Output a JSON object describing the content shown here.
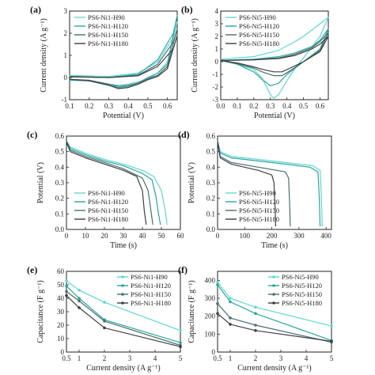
{
  "colors": {
    "H90": "#5fd8d0",
    "H120": "#2aa6a0",
    "H150": "#4b6f6d",
    "H180": "#3c3f44"
  },
  "chart_data": [
    {
      "id": "a",
      "label": "(a)",
      "type": "line",
      "xlabel": "Potential (V)",
      "ylabel": "Current density (A g⁻¹)",
      "xlim": [
        0.1,
        0.65
      ],
      "ylim": [
        -1,
        3
      ],
      "xticks": [
        "0.1",
        "0.2",
        "0.3",
        "0.4",
        "0.5",
        "0.6"
      ],
      "yticks": [
        "-1",
        "0",
        "1",
        "2",
        "3"
      ],
      "legend": [
        "PS6-Ni1-H90",
        "PS6-Ni1-H120",
        "PS6-Ni1-H150",
        "PS6-Ni1-H180"
      ],
      "series": [
        {
          "name": "PS6-Ni1-H90",
          "x": [
            0.1,
            0.3,
            0.45,
            0.55,
            0.63,
            0.65,
            0.6,
            0.55,
            0.5,
            0.45,
            0.4,
            0.35,
            0.3,
            0.2,
            0.1,
            0.1
          ],
          "y": [
            0.1,
            0.05,
            0.2,
            0.7,
            1.8,
            2.5,
            0.7,
            0.2,
            -0.05,
            -0.2,
            -0.3,
            -0.35,
            -0.3,
            -0.15,
            -0.1,
            0.1
          ]
        },
        {
          "name": "PS6-Ni1-H120",
          "x": [
            0.1,
            0.3,
            0.45,
            0.55,
            0.63,
            0.65,
            0.6,
            0.55,
            0.5,
            0.45,
            0.4,
            0.35,
            0.3,
            0.2,
            0.1,
            0.1
          ],
          "y": [
            0.05,
            0.0,
            0.15,
            0.8,
            2.0,
            2.8,
            0.6,
            0.2,
            0.0,
            -0.25,
            -0.4,
            -0.45,
            -0.35,
            -0.15,
            -0.12,
            0.05
          ]
        },
        {
          "name": "PS6-Ni1-H150",
          "x": [
            0.1,
            0.3,
            0.45,
            0.55,
            0.63,
            0.65,
            0.6,
            0.55,
            0.5,
            0.45,
            0.4,
            0.35,
            0.3,
            0.2,
            0.1,
            0.1
          ],
          "y": [
            0.05,
            0.0,
            0.1,
            0.6,
            1.6,
            2.2,
            0.5,
            0.1,
            -0.05,
            -0.25,
            -0.35,
            -0.4,
            -0.3,
            -0.12,
            -0.08,
            0.05
          ]
        },
        {
          "name": "PS6-Ni1-H180",
          "x": [
            0.1,
            0.3,
            0.45,
            0.55,
            0.63,
            0.65,
            0.6,
            0.55,
            0.5,
            0.45,
            0.4,
            0.35,
            0.3,
            0.2,
            0.1,
            0.1
          ],
          "y": [
            0.03,
            0.0,
            0.08,
            0.5,
            1.3,
            1.9,
            0.4,
            0.05,
            -0.1,
            -0.3,
            -0.45,
            -0.5,
            -0.35,
            -0.15,
            -0.08,
            0.03
          ]
        }
      ]
    },
    {
      "id": "b",
      "label": "(b)",
      "type": "line",
      "xlabel": "Potential (V)",
      "ylabel": "Current density (A g⁻¹)",
      "xlim": [
        0.0,
        0.65
      ],
      "ylim": [
        -3,
        4
      ],
      "xticks": [
        "0.0",
        "0.1",
        "0.2",
        "0.3",
        "0.4",
        "0.5",
        "0.6"
      ],
      "yticks": [
        "-3",
        "-2",
        "-1",
        "0",
        "1",
        "2",
        "3",
        "4"
      ],
      "legend": [
        "PS6-Ni5-H90",
        "PS6-Ni5-H120",
        "PS6-Ni5-H150",
        "PS6-Ni5-H180"
      ],
      "series": [
        {
          "name": "PS6-Ni5-H90",
          "x": [
            0.0,
            0.2,
            0.35,
            0.45,
            0.5,
            0.55,
            0.6,
            0.63,
            0.65,
            0.6,
            0.5,
            0.45,
            0.4,
            0.35,
            0.32,
            0.3,
            0.25,
            0.2,
            0.1,
            0.0
          ],
          "y": [
            0.2,
            0.4,
            0.9,
            1.6,
            2.0,
            2.5,
            3.0,
            3.3,
            3.5,
            2.0,
            0.3,
            -0.5,
            -1.5,
            -2.6,
            -2.9,
            -2.6,
            -1.3,
            -0.6,
            -0.2,
            0.2
          ]
        },
        {
          "name": "PS6-Ni5-H120",
          "x": [
            0.0,
            0.2,
            0.35,
            0.45,
            0.55,
            0.6,
            0.65,
            0.6,
            0.5,
            0.4,
            0.35,
            0.3,
            0.25,
            0.2,
            0.1,
            0.0
          ],
          "y": [
            0.1,
            0.2,
            0.4,
            0.7,
            1.2,
            1.7,
            2.6,
            1.0,
            0.0,
            -1.0,
            -1.7,
            -1.9,
            -1.4,
            -0.8,
            -0.2,
            0.1
          ]
        },
        {
          "name": "PS6-Ni5-H150",
          "x": [
            0.0,
            0.2,
            0.35,
            0.45,
            0.55,
            0.6,
            0.65,
            0.6,
            0.5,
            0.42,
            0.37,
            0.32,
            0.25,
            0.2,
            0.1,
            0.0
          ],
          "y": [
            0.1,
            0.15,
            0.3,
            0.6,
            1.1,
            1.6,
            2.3,
            0.9,
            0.0,
            -0.7,
            -1.1,
            -1.1,
            -0.8,
            -0.5,
            -0.15,
            0.1
          ]
        },
        {
          "name": "PS6-Ni5-H180",
          "x": [
            0.0,
            0.2,
            0.35,
            0.45,
            0.55,
            0.6,
            0.65,
            0.6,
            0.5,
            0.42,
            0.37,
            0.32,
            0.25,
            0.2,
            0.1,
            0.0
          ],
          "y": [
            0.1,
            0.15,
            0.25,
            0.5,
            1.0,
            1.4,
            2.0,
            0.8,
            0.0,
            -0.5,
            -0.8,
            -0.8,
            -0.6,
            -0.4,
            -0.1,
            0.1
          ]
        }
      ]
    },
    {
      "id": "c",
      "label": "(c)",
      "type": "line",
      "xlabel": "Time (s)",
      "ylabel": "Potential (V)",
      "xlim": [
        0,
        60
      ],
      "ylim": [
        0,
        0.6
      ],
      "xticks": [
        "0",
        "10",
        "20",
        "30",
        "40",
        "50",
        "60"
      ],
      "yticks": [
        "0.0",
        "0.1",
        "0.2",
        "0.3",
        "0.4",
        "0.5",
        "0.6"
      ],
      "legend": [
        "PS6-Ni1-H90",
        "PS6-Ni1-H120",
        "PS6-Ni1-H150",
        "PS6-Ni1-H180"
      ],
      "series": [
        {
          "name": "PS6-Ni1-H90",
          "x": [
            0,
            2,
            10,
            20,
            30,
            40,
            46,
            50,
            52,
            53
          ],
          "y": [
            0.57,
            0.53,
            0.49,
            0.45,
            0.42,
            0.38,
            0.34,
            0.25,
            0.12,
            0.03
          ]
        },
        {
          "name": "PS6-Ni1-H120",
          "x": [
            0,
            2,
            10,
            20,
            30,
            40,
            45,
            47,
            48.5,
            49.5
          ],
          "y": [
            0.57,
            0.52,
            0.48,
            0.44,
            0.41,
            0.36,
            0.32,
            0.22,
            0.1,
            0.03
          ]
        },
        {
          "name": "PS6-Ni1-H150",
          "x": [
            0,
            2,
            10,
            20,
            30,
            40,
            43,
            44.5,
            45.5
          ],
          "y": [
            0.57,
            0.51,
            0.47,
            0.43,
            0.39,
            0.33,
            0.25,
            0.12,
            0.03
          ]
        },
        {
          "name": "PS6-Ni1-H180",
          "x": [
            0,
            2,
            10,
            20,
            30,
            37,
            40,
            41,
            42
          ],
          "y": [
            0.56,
            0.5,
            0.46,
            0.42,
            0.38,
            0.34,
            0.25,
            0.12,
            0.03
          ]
        }
      ]
    },
    {
      "id": "d",
      "label": "(d)",
      "type": "line",
      "xlabel": "Time (s)",
      "ylabel": "Potential (V)",
      "xlim": [
        0,
        420
      ],
      "ylim": [
        0,
        0.6
      ],
      "xticks": [
        "0",
        "100",
        "200",
        "300",
        "400"
      ],
      "yticks": [
        "0.0",
        "0.1",
        "0.2",
        "0.3",
        "0.4",
        "0.5",
        "0.6"
      ],
      "legend": [
        "PS6-Ni5-H90",
        "PS6-Ni5-H120",
        "PS6-Ni5-H150",
        "PS6-Ni5-H180"
      ],
      "series": [
        {
          "name": "PS6-Ni5-H90",
          "x": [
            0,
            10,
            50,
            150,
            250,
            350,
            378,
            383,
            386
          ],
          "y": [
            0.57,
            0.5,
            0.47,
            0.45,
            0.43,
            0.41,
            0.38,
            0.2,
            0.02
          ]
        },
        {
          "name": "PS6-Ni5-H120",
          "x": [
            0,
            10,
            50,
            150,
            250,
            340,
            370,
            375,
            378
          ],
          "y": [
            0.57,
            0.49,
            0.46,
            0.44,
            0.42,
            0.4,
            0.37,
            0.2,
            0.02
          ]
        },
        {
          "name": "PS6-Ni5-H150",
          "x": [
            0,
            10,
            50,
            150,
            250,
            262,
            266,
            268
          ],
          "y": [
            0.57,
            0.47,
            0.43,
            0.4,
            0.37,
            0.33,
            0.15,
            0.02
          ]
        },
        {
          "name": "PS6-Ni5-H180",
          "x": [
            0,
            10,
            50,
            150,
            200,
            208,
            212,
            214
          ],
          "y": [
            0.56,
            0.46,
            0.42,
            0.38,
            0.35,
            0.3,
            0.15,
            0.02
          ]
        }
      ]
    },
    {
      "id": "e",
      "label": "(e)",
      "type": "line",
      "xlabel": "Current density (A g⁻¹)",
      "ylabel": "Capacitance (F g⁻¹)",
      "xlim": [
        0.5,
        5
      ],
      "ylim": [
        0,
        60
      ],
      "xticks": [
        "0.5",
        "1",
        "2",
        "3",
        "4",
        "5"
      ],
      "yticks": [
        "0",
        "10",
        "20",
        "30",
        "40",
        "50",
        "60"
      ],
      "legend": [
        "PS6-Ni1-H90",
        "PS6-Ni1-H120",
        "PS6-Ni1-H150",
        "PS6-Ni1-H180"
      ],
      "series": [
        {
          "name": "PS6-Ni1-H90",
          "x": [
            0.5,
            1,
            2,
            5
          ],
          "y": [
            53,
            46,
            37,
            16
          ]
        },
        {
          "name": "PS6-Ni1-H120",
          "x": [
            0.5,
            1,
            2,
            5
          ],
          "y": [
            49,
            40,
            24,
            7
          ]
        },
        {
          "name": "PS6-Ni1-H150",
          "x": [
            0.5,
            1,
            2,
            5
          ],
          "y": [
            45,
            38,
            23,
            5
          ]
        },
        {
          "name": "PS6-Ni1-H180",
          "x": [
            0.5,
            1,
            2,
            5
          ],
          "y": [
            42,
            33,
            18,
            4
          ]
        }
      ]
    },
    {
      "id": "f",
      "label": "(f)",
      "type": "line",
      "xlabel": "Current density (A g⁻¹)",
      "ylabel": "Capacitance (F g⁻¹)",
      "xlim": [
        0.5,
        5
      ],
      "ylim": [
        0,
        450
      ],
      "xticks": [
        "0.5",
        "1",
        "2",
        "3",
        "4",
        "5"
      ],
      "yticks": [
        "0",
        "100",
        "200",
        "300",
        "400"
      ],
      "legend": [
        "PS6-Ni5-H90",
        "PS6-Ni5-H120",
        "PS6-Ni5-H150",
        "PS6-Ni5-H180"
      ],
      "series": [
        {
          "name": "PS6-Ni5-H90",
          "x": [
            0.5,
            1,
            2,
            5
          ],
          "y": [
            390,
            300,
            250,
            145
          ]
        },
        {
          "name": "PS6-Ni5-H120",
          "x": [
            0.5,
            1,
            2,
            5
          ],
          "y": [
            375,
            280,
            215,
            65
          ]
        },
        {
          "name": "PS6-Ni5-H150",
          "x": [
            0.5,
            1,
            2,
            5
          ],
          "y": [
            270,
            190,
            150,
            55
          ]
        },
        {
          "name": "PS6-Ni5-H180",
          "x": [
            0.5,
            1,
            2,
            5
          ],
          "y": [
            215,
            155,
            120,
            60
          ]
        }
      ]
    }
  ]
}
